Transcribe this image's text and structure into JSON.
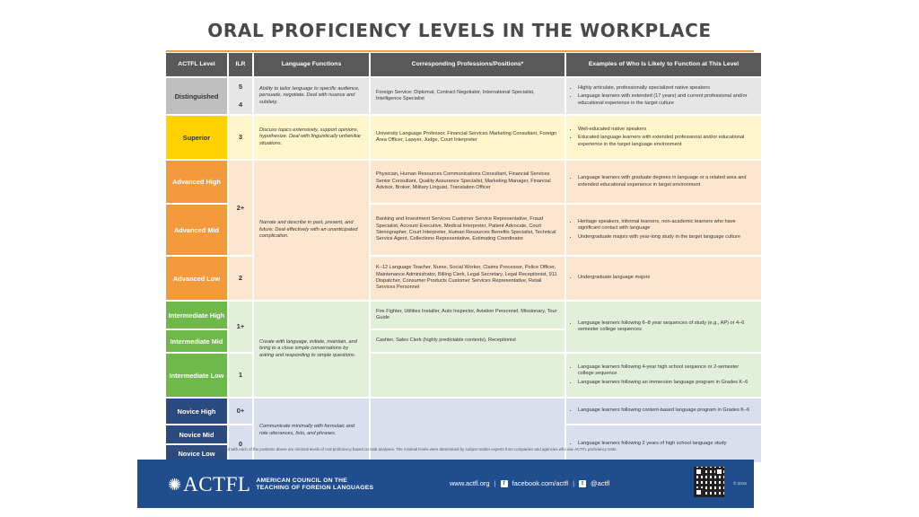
{
  "title": "ORAL PROFICIENCY LEVELS IN THE WORKPLACE",
  "colors": {
    "header": "#595959",
    "distinguished": "#bfbfbf",
    "superior": "#ffd100",
    "advanced": "#f39a3d",
    "intermediate": "#6fb84a",
    "novice": "#2a4a80",
    "accent": "#e8a15a",
    "footer": "#1f4d8e"
  },
  "headers": {
    "actfl": "ACTFL Level",
    "ilr": "ILR",
    "functions": "Language Functions",
    "professions": "Corresponding Professions/Positions*",
    "examples": "Examples of Who Is Likely to Function at This Level"
  },
  "levels": {
    "distinguished": "Distinguished",
    "superior": "Superior",
    "adv_high": "Advanced High",
    "adv_mid": "Advanced Mid",
    "adv_low": "Advanced Low",
    "int_high": "Intermediate High",
    "int_mid": "Intermediate Mid",
    "int_low": "Intermediate Low",
    "nov_high": "Novice High",
    "nov_mid": "Novice Mid",
    "nov_low": "Novice Low"
  },
  "ilr": {
    "d5": "5",
    "d4": "4",
    "s3": "3",
    "a2p": "2+",
    "a2": "2",
    "i1p": "1+",
    "i1": "1",
    "n0p": "0+",
    "n0": "0"
  },
  "functions": {
    "distinguished": "Ability to tailor language to specific audience, persuade, negotiate. Deal with nuance and subtlety.",
    "superior": "Discuss topics extensively, support opinions, hypothesize. Deal with linguistically unfamiliar situations.",
    "advanced": "Narrate and describe in past, present, and future. Deal effectively with an unanticipated complication.",
    "intermediate": "Create with language, initiate, maintain, and bring to a close simple conversations by asking and responding to simple questions.",
    "novice": "Communicate minimally with formulaic and rote utterances, lists, and phrases."
  },
  "professions": {
    "distinguished": "Foreign Service: Diplomat, Contract Negotiator, International Specialist, Intelligence Specialist",
    "superior": "University Language Professor, Financial Services Marketing Consultant, Foreign Area Officer, Lawyer, Judge, Court Interpreter",
    "adv_high": "Physician, Human Resources Communications Consultant, Financial Services Senior Consultant, Quality Assurance Specialist, Marketing Manager, Financial Advisor, Broker, Military Linguist, Translation Officer",
    "adv_mid": "Banking and Investment Services Customer Service Representative, Fraud Specialist, Account Executive, Medical Interpreter, Patient Advocate, Court Stenographer, Court Interpreter, Human Resources Benefits Specialist, Technical Service Agent, Collections Representative, Estimating Coordinator",
    "adv_low": "K–12 Language Teacher, Nurse, Social Worker, Claims Processor, Police Officer, Maintenance Administrator, Billing Clerk, Legal Secretary, Legal Receptionist, 911 Dispatcher, Consumer Products Customer Services Representative, Retail Services Personnel",
    "int_high": "Fire Fighter, Utilities Installer, Auto Inspector, Aviation Personnel, Missionary, Tour Guide",
    "int_mid": "Cashier, Sales Clerk (highly predictable contexts), Receptionist"
  },
  "examples": {
    "distinguished": [
      "Highly articulate, professionally specialized native speakers",
      "Language learners with extended (17 years) and current professional and/or educational experience in the target culture"
    ],
    "superior": [
      "Well-educated native speakers",
      "Educated language learners with extended professional and/or educational experience in the target language environment"
    ],
    "adv_high": [
      "Language learners with graduate degrees in language or a related area and extended educational experience in target environment"
    ],
    "adv_mid": [
      "Heritage speakers, informal learners, non-academic learners who have significant contact with language",
      "Undergraduate majors with year-long study in the target language culture"
    ],
    "adv_low": [
      "Undergraduate language majors"
    ],
    "int_high": [
      "Language learners following 6–8 year sequences of study (e.g., AP) or 4–6 semester college sequences"
    ],
    "int_low": [
      "Language learners following 4-year high school sequence or 2-semester college sequence",
      "Language learners following an immersion language program in Grades K–6"
    ],
    "nov_high": [
      "Language learners following content-based language program in Grades K–6"
    ],
    "nov_mid": [
      "Language learners following 2 years of high school language study"
    ]
  },
  "footnote": "*The levels of proficiency associated with each of the positions above are minimal levels of oral proficiency based on task analyses. The minimal levels were determined by subject matter experts from companies and agencies who use ACTFL proficiency tests.",
  "footer": {
    "logo": "ACTFL",
    "org_line1": "AMERICAN COUNCIL ON THE",
    "org_line2": "TEACHING OF FOREIGN LANGUAGES",
    "website": "www.actfl.org",
    "sep": "|",
    "facebook": "facebook.com/actfl",
    "twitter": "@actfl",
    "copyright": "© 2015"
  }
}
